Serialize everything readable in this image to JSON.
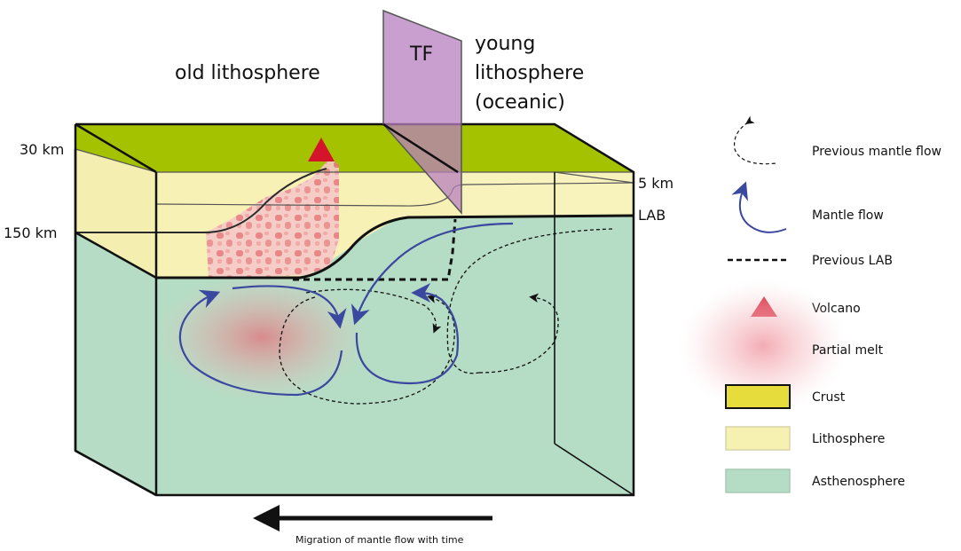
{
  "labels": {
    "old_lithosphere": "old lithosphere",
    "young_lithosphere": [
      "young",
      "lithosphere",
      "(oceanic)"
    ],
    "tf": "TF",
    "depth_30": "30 km",
    "depth_150": "150 km",
    "depth_5": "5 km",
    "lab": "LAB",
    "migration": "Migration of mantle flow with time"
  },
  "legend": {
    "previous_mantle_flow": "Previous mantle flow",
    "mantle_flow": "Mantle flow",
    "previous_lab": "Previous LAB",
    "volcano": "Volcano",
    "partial_melt": "Partial melt",
    "crust": "Crust",
    "lithosphere": "Lithosphere",
    "asthenosphere": "Asthenosphere"
  },
  "colors": {
    "crust": "#a5c200",
    "crust_legend": "#e6dc3c",
    "lithosphere": "#f6f1b0",
    "asthenosphere": "#b5dcc4",
    "transform_fault": "#b77fc0",
    "mantle_flow": "#3b48a0",
    "volcano": "#d4142a",
    "partial_melt": "#e86f7a"
  }
}
